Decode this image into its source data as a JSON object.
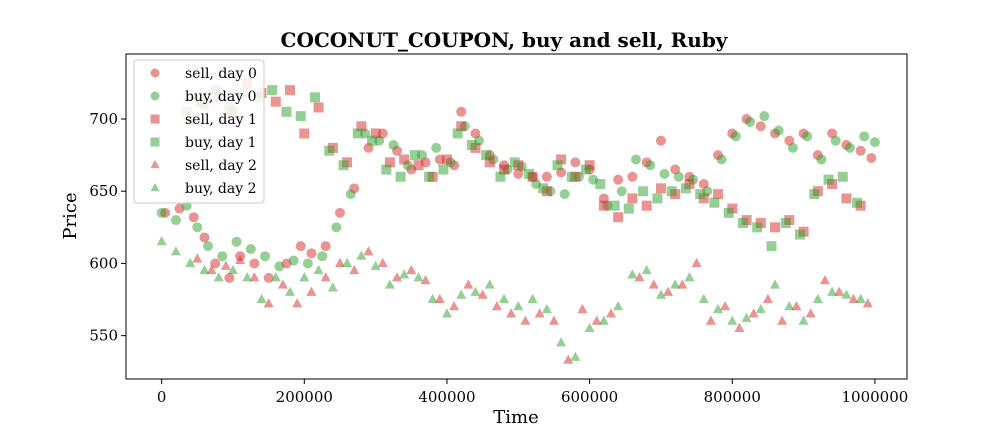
{
  "chart_data": {
    "type": "scatter",
    "title": "COCONUT_COUPON, buy and sell, Ruby",
    "xlabel": "Time",
    "ylabel": "Price",
    "xlim": [
      -50000,
      1045000
    ],
    "ylim": [
      520,
      745
    ],
    "xticks": [
      0,
      200000,
      400000,
      600000,
      800000,
      1000000
    ],
    "xtick_labels": [
      "0",
      "200000",
      "400000",
      "600000",
      "800000",
      "1000000"
    ],
    "yticks": [
      550,
      600,
      650,
      700
    ],
    "ytick_labels": [
      "550",
      "600",
      "650",
      "700"
    ],
    "legend_position": "upper-left",
    "grid": false,
    "colors": {
      "sell": "#d62728",
      "buy": "#2ca02c"
    },
    "series": [
      {
        "name": "sell, day 0",
        "side": "sell",
        "marker": "circle",
        "points": [
          [
            5000,
            635
          ],
          [
            25000,
            638
          ],
          [
            45000,
            632
          ],
          [
            60000,
            618
          ],
          [
            75000,
            600
          ],
          [
            95000,
            590
          ],
          [
            110000,
            605
          ],
          [
            130000,
            600
          ],
          [
            150000,
            590
          ],
          [
            175000,
            600
          ],
          [
            195000,
            612
          ],
          [
            210000,
            607
          ],
          [
            230000,
            612
          ],
          [
            250000,
            635
          ],
          [
            270000,
            652
          ],
          [
            290000,
            680
          ],
          [
            310000,
            690
          ],
          [
            330000,
            678
          ],
          [
            350000,
            665
          ],
          [
            370000,
            670
          ],
          [
            390000,
            672
          ],
          [
            410000,
            668
          ],
          [
            420000,
            705
          ],
          [
            440000,
            690
          ],
          [
            460000,
            675
          ],
          [
            480000,
            668
          ],
          [
            500000,
            662
          ],
          [
            520000,
            660
          ],
          [
            540000,
            660
          ],
          [
            560000,
            663
          ],
          [
            580000,
            670
          ],
          [
            600000,
            665
          ],
          [
            620000,
            645
          ],
          [
            640000,
            658
          ],
          [
            660000,
            660
          ],
          [
            680000,
            670
          ],
          [
            700000,
            685
          ],
          [
            720000,
            665
          ],
          [
            740000,
            660
          ],
          [
            760000,
            655
          ],
          [
            780000,
            675
          ],
          [
            800000,
            690
          ],
          [
            820000,
            700
          ],
          [
            840000,
            695
          ],
          [
            860000,
            690
          ],
          [
            880000,
            685
          ],
          [
            900000,
            690
          ],
          [
            920000,
            675
          ],
          [
            940000,
            690
          ],
          [
            960000,
            682
          ],
          [
            980000,
            678
          ],
          [
            995000,
            673
          ]
        ]
      },
      {
        "name": "buy, day 0",
        "side": "buy",
        "marker": "circle",
        "points": [
          [
            0,
            635
          ],
          [
            20000,
            630
          ],
          [
            35000,
            640
          ],
          [
            50000,
            625
          ],
          [
            65000,
            612
          ],
          [
            85000,
            605
          ],
          [
            105000,
            615
          ],
          [
            125000,
            610
          ],
          [
            145000,
            605
          ],
          [
            165000,
            598
          ],
          [
            185000,
            602
          ],
          [
            205000,
            600
          ],
          [
            225000,
            605
          ],
          [
            245000,
            625
          ],
          [
            265000,
            648
          ],
          [
            285000,
            690
          ],
          [
            305000,
            685
          ],
          [
            325000,
            682
          ],
          [
            345000,
            668
          ],
          [
            365000,
            675
          ],
          [
            385000,
            680
          ],
          [
            405000,
            670
          ],
          [
            425000,
            695
          ],
          [
            445000,
            685
          ],
          [
            465000,
            672
          ],
          [
            485000,
            665
          ],
          [
            505000,
            667
          ],
          [
            525000,
            655
          ],
          [
            545000,
            650
          ],
          [
            565000,
            648
          ],
          [
            585000,
            660
          ],
          [
            605000,
            658
          ],
          [
            625000,
            640
          ],
          [
            645000,
            650
          ],
          [
            665000,
            672
          ],
          [
            685000,
            668
          ],
          [
            705000,
            662
          ],
          [
            725000,
            660
          ],
          [
            745000,
            658
          ],
          [
            765000,
            650
          ],
          [
            785000,
            672
          ],
          [
            805000,
            688
          ],
          [
            825000,
            698
          ],
          [
            845000,
            702
          ],
          [
            865000,
            692
          ],
          [
            885000,
            680
          ],
          [
            905000,
            688
          ],
          [
            925000,
            672
          ],
          [
            945000,
            685
          ],
          [
            965000,
            680
          ],
          [
            985000,
            688
          ],
          [
            1000000,
            684
          ]
        ]
      },
      {
        "name": "sell, day 1",
        "side": "sell",
        "marker": "square",
        "points": [
          [
            40000,
            700
          ],
          [
            60000,
            710
          ],
          [
            80000,
            715
          ],
          [
            100000,
            705
          ],
          [
            120000,
            725
          ],
          [
            140000,
            718
          ],
          [
            160000,
            712
          ],
          [
            180000,
            720
          ],
          [
            200000,
            690
          ],
          [
            220000,
            708
          ],
          [
            240000,
            680
          ],
          [
            260000,
            670
          ],
          [
            280000,
            695
          ],
          [
            300000,
            690
          ],
          [
            320000,
            670
          ],
          [
            340000,
            672
          ],
          [
            360000,
            668
          ],
          [
            380000,
            660
          ],
          [
            400000,
            672
          ],
          [
            420000,
            695
          ],
          [
            440000,
            680
          ],
          [
            460000,
            670
          ],
          [
            480000,
            665
          ],
          [
            500000,
            668
          ],
          [
            520000,
            660
          ],
          [
            540000,
            650
          ],
          [
            560000,
            672
          ],
          [
            580000,
            660
          ],
          [
            600000,
            668
          ],
          [
            620000,
            640
          ],
          [
            640000,
            632
          ],
          [
            660000,
            645
          ],
          [
            680000,
            640
          ],
          [
            700000,
            652
          ],
          [
            720000,
            648
          ],
          [
            740000,
            655
          ],
          [
            760000,
            645
          ],
          [
            780000,
            648
          ],
          [
            800000,
            638
          ],
          [
            820000,
            630
          ],
          [
            840000,
            628
          ],
          [
            860000,
            625
          ],
          [
            880000,
            630
          ],
          [
            900000,
            622
          ],
          [
            920000,
            650
          ],
          [
            940000,
            655
          ],
          [
            960000,
            645
          ],
          [
            980000,
            640
          ]
        ]
      },
      {
        "name": "buy, day 1",
        "side": "buy",
        "marker": "square",
        "points": [
          [
            35000,
            705
          ],
          [
            55000,
            712
          ],
          [
            75000,
            720
          ],
          [
            95000,
            708
          ],
          [
            115000,
            718
          ],
          [
            135000,
            715
          ],
          [
            155000,
            720
          ],
          [
            175000,
            705
          ],
          [
            195000,
            702
          ],
          [
            215000,
            715
          ],
          [
            235000,
            678
          ],
          [
            255000,
            668
          ],
          [
            275000,
            690
          ],
          [
            295000,
            685
          ],
          [
            315000,
            665
          ],
          [
            335000,
            660
          ],
          [
            355000,
            675
          ],
          [
            375000,
            660
          ],
          [
            395000,
            665
          ],
          [
            415000,
            690
          ],
          [
            435000,
            682
          ],
          [
            455000,
            675
          ],
          [
            475000,
            660
          ],
          [
            495000,
            670
          ],
          [
            515000,
            662
          ],
          [
            535000,
            652
          ],
          [
            555000,
            668
          ],
          [
            575000,
            660
          ],
          [
            595000,
            665
          ],
          [
            615000,
            655
          ],
          [
            635000,
            640
          ],
          [
            655000,
            638
          ],
          [
            675000,
            650
          ],
          [
            695000,
            645
          ],
          [
            715000,
            650
          ],
          [
            735000,
            652
          ],
          [
            755000,
            648
          ],
          [
            775000,
            642
          ],
          [
            795000,
            635
          ],
          [
            815000,
            628
          ],
          [
            835000,
            625
          ],
          [
            855000,
            612
          ],
          [
            875000,
            628
          ],
          [
            895000,
            620
          ],
          [
            915000,
            648
          ],
          [
            935000,
            658
          ],
          [
            955000,
            660
          ],
          [
            975000,
            642
          ]
        ]
      },
      {
        "name": "sell, day 2",
        "side": "sell",
        "marker": "triangle",
        "points": [
          [
            50000,
            603
          ],
          [
            70000,
            595
          ],
          [
            90000,
            598
          ],
          [
            110000,
            602
          ],
          [
            130000,
            590
          ],
          [
            150000,
            572
          ],
          [
            170000,
            585
          ],
          [
            190000,
            572
          ],
          [
            210000,
            580
          ],
          [
            230000,
            590
          ],
          [
            250000,
            600
          ],
          [
            270000,
            595
          ],
          [
            290000,
            608
          ],
          [
            310000,
            600
          ],
          [
            330000,
            590
          ],
          [
            350000,
            595
          ],
          [
            370000,
            588
          ],
          [
            390000,
            575
          ],
          [
            410000,
            570
          ],
          [
            430000,
            585
          ],
          [
            450000,
            578
          ],
          [
            470000,
            570
          ],
          [
            490000,
            565
          ],
          [
            510000,
            560
          ],
          [
            530000,
            565
          ],
          [
            550000,
            560
          ],
          [
            570000,
            533
          ],
          [
            590000,
            568
          ],
          [
            610000,
            560
          ],
          [
            630000,
            565
          ],
          [
            670000,
            590
          ],
          [
            690000,
            585
          ],
          [
            710000,
            580
          ],
          [
            730000,
            585
          ],
          [
            750000,
            600
          ],
          [
            770000,
            560
          ],
          [
            790000,
            570
          ],
          [
            810000,
            555
          ],
          [
            830000,
            565
          ],
          [
            850000,
            575
          ],
          [
            870000,
            560
          ],
          [
            890000,
            570
          ],
          [
            910000,
            565
          ],
          [
            930000,
            588
          ],
          [
            950000,
            580
          ],
          [
            970000,
            575
          ],
          [
            990000,
            572
          ]
        ]
      },
      {
        "name": "buy, day 2",
        "side": "buy",
        "marker": "triangle",
        "points": [
          [
            0,
            615
          ],
          [
            20000,
            608
          ],
          [
            40000,
            600
          ],
          [
            60000,
            595
          ],
          [
            80000,
            590
          ],
          [
            100000,
            595
          ],
          [
            120000,
            590
          ],
          [
            140000,
            575
          ],
          [
            160000,
            590
          ],
          [
            180000,
            580
          ],
          [
            200000,
            590
          ],
          [
            220000,
            595
          ],
          [
            240000,
            583
          ],
          [
            260000,
            600
          ],
          [
            280000,
            605
          ],
          [
            300000,
            598
          ],
          [
            320000,
            585
          ],
          [
            340000,
            592
          ],
          [
            360000,
            590
          ],
          [
            380000,
            575
          ],
          [
            400000,
            565
          ],
          [
            420000,
            578
          ],
          [
            440000,
            580
          ],
          [
            460000,
            585
          ],
          [
            480000,
            575
          ],
          [
            500000,
            570
          ],
          [
            520000,
            575
          ],
          [
            540000,
            568
          ],
          [
            560000,
            545
          ],
          [
            580000,
            535
          ],
          [
            600000,
            555
          ],
          [
            620000,
            560
          ],
          [
            640000,
            570
          ],
          [
            660000,
            592
          ],
          [
            680000,
            595
          ],
          [
            700000,
            578
          ],
          [
            720000,
            585
          ],
          [
            740000,
            590
          ],
          [
            760000,
            575
          ],
          [
            780000,
            568
          ],
          [
            800000,
            560
          ],
          [
            820000,
            562
          ],
          [
            840000,
            568
          ],
          [
            860000,
            585
          ],
          [
            880000,
            570
          ],
          [
            900000,
            560
          ],
          [
            920000,
            575
          ],
          [
            940000,
            580
          ],
          [
            960000,
            578
          ],
          [
            980000,
            575
          ]
        ]
      }
    ]
  }
}
